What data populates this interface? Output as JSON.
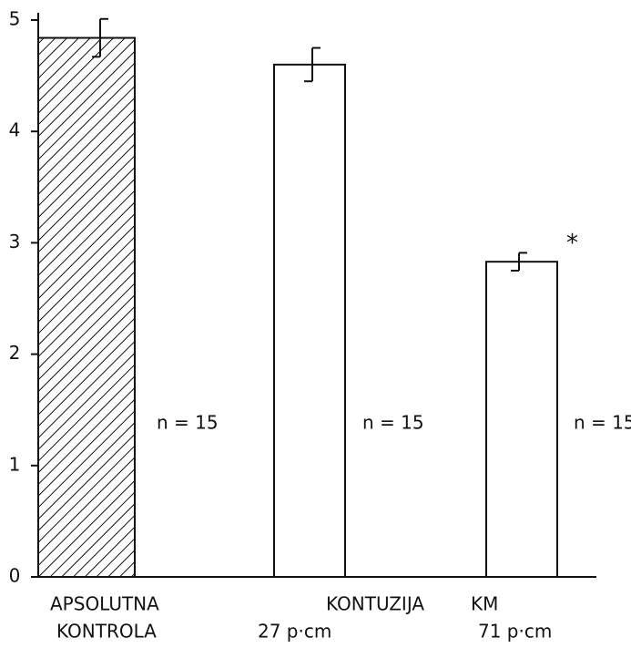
{
  "chart_data": {
    "type": "bar",
    "categories": [
      [
        "APSOLUTNA",
        "KONTROLA"
      ],
      [
        "KONTUZIJA",
        "27 p·cm"
      ],
      [
        "KM",
        "71 p·cm"
      ]
    ],
    "values": [
      4.84,
      4.6,
      2.83
    ],
    "errors": [
      0.17,
      0.15,
      0.08
    ],
    "n_labels": [
      "n = 15",
      "n = 15",
      "n = 15"
    ],
    "markers": [
      null,
      null,
      "*"
    ],
    "hatched": [
      true,
      false,
      false
    ],
    "color": "#ffffff",
    "ylim": [
      0,
      5
    ],
    "yticks": [
      0,
      1,
      2,
      3,
      4,
      5
    ],
    "grid": false
  }
}
